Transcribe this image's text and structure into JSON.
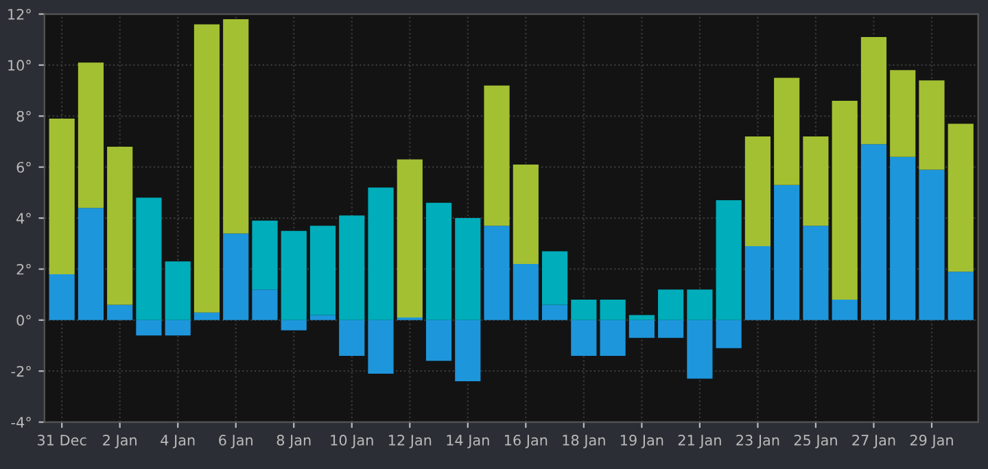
{
  "chart_data": {
    "type": "bar",
    "stacked": true,
    "categories": [
      "31 Dec",
      null,
      "2 Jan",
      null,
      "4 Jan",
      null,
      "6 Jan",
      null,
      "8 Jan",
      null,
      "10 Jan",
      null,
      "12 Jan",
      null,
      "14 Jan",
      null,
      "16 Jan",
      null,
      "18 Jan",
      null,
      "19 Jan",
      null,
      "21 Jan",
      null,
      "23 Jan",
      null,
      "25 Jan",
      null,
      "27 Jan",
      null,
      "29 Jan",
      null
    ],
    "series": [
      {
        "color": "#1e96dc",
        "values": [
          1.8,
          4.4,
          0.6,
          -0.6,
          -0.6,
          0.3,
          3.4,
          1.2,
          -0.4,
          0.2,
          -1.4,
          -2.1,
          0.1,
          -1.6,
          -2.4,
          3.7,
          2.2,
          0.6,
          -1.4,
          -1.4,
          -0.7,
          -0.7,
          -2.3,
          -1.1,
          2.9,
          5.3,
          3.7,
          0.8,
          6.9,
          6.4,
          5.9,
          1.9
        ]
      },
      {
        "values": [
          6.1,
          5.7,
          6.2,
          4.8,
          2.3,
          11.3,
          8.4,
          2.7,
          3.5,
          3.5,
          4.1,
          5.2,
          6.2,
          4.6,
          4.0,
          5.5,
          3.9,
          2.1,
          0.8,
          0.8,
          0.2,
          1.2,
          1.2,
          4.7,
          4.3,
          4.2,
          3.5,
          7.8,
          4.2,
          3.4,
          3.5,
          5.8
        ],
        "colors": [
          "#a3c033",
          "#a3c033",
          "#a3c033",
          "#00adbb",
          "#00adbb",
          "#a3c033",
          "#a3c033",
          "#00adbb",
          "#00adbb",
          "#00adbb",
          "#00adbb",
          "#00adbb",
          "#a3c033",
          "#00adbb",
          "#00adbb",
          "#a3c033",
          "#a3c033",
          "#00adbb",
          "#00adbb",
          "#00adbb",
          "#00adbb",
          "#00adbb",
          "#00adbb",
          "#00adbb",
          "#a3c033",
          "#a3c033",
          "#a3c033",
          "#a3c033",
          "#a3c033",
          "#a3c033",
          "#a3c033",
          "#a3c033"
        ]
      }
    ],
    "ylim": [
      -4,
      12
    ],
    "yticks": [
      {
        "value": -4,
        "label": "-4°"
      },
      {
        "value": -2,
        "label": "-2°"
      },
      {
        "value": 0,
        "label": "0°"
      },
      {
        "value": 2,
        "label": "2°"
      },
      {
        "value": 4,
        "label": "4°"
      },
      {
        "value": 6,
        "label": "6°"
      },
      {
        "value": 8,
        "label": "8°"
      },
      {
        "value": 10,
        "label": "10°"
      },
      {
        "value": 12,
        "label": "12°"
      }
    ],
    "grid": true
  }
}
